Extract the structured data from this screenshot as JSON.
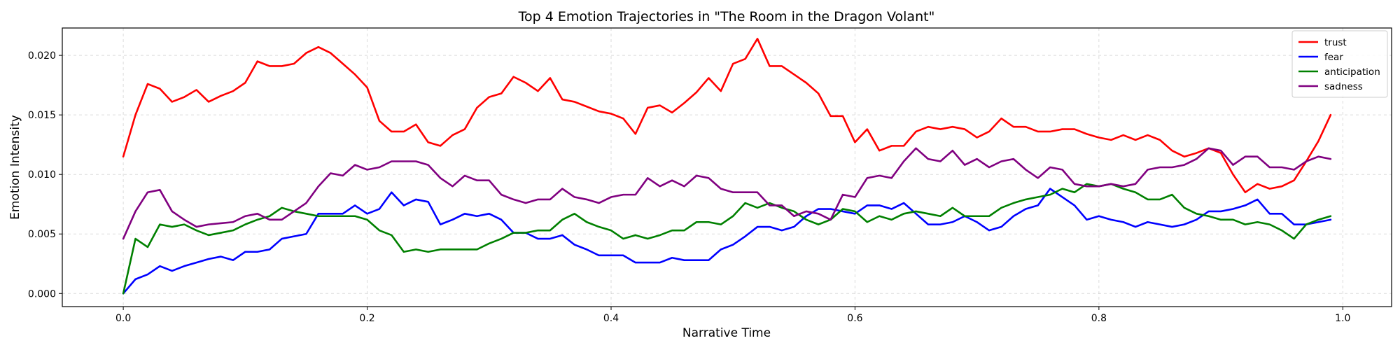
{
  "chart_data": {
    "type": "line",
    "title": "Top 4 Emotion Trajectories in \"The Room in the Dragon Volant\"",
    "xlabel": "Narrative Time",
    "ylabel": "Emotion Intensity",
    "xlim": [
      -0.05,
      1.04
    ],
    "ylim": [
      -0.0011,
      0.0223
    ],
    "xticks": [
      {
        "value": 0.0,
        "label": "0.0"
      },
      {
        "value": 0.2,
        "label": "0.2"
      },
      {
        "value": 0.4,
        "label": "0.4"
      },
      {
        "value": 0.6,
        "label": "0.6"
      },
      {
        "value": 0.8,
        "label": "0.8"
      },
      {
        "value": 1.0,
        "label": "1.0"
      }
    ],
    "yticks": [
      {
        "value": 0.0,
        "label": "0.000"
      },
      {
        "value": 0.005,
        "label": "0.005"
      },
      {
        "value": 0.01,
        "label": "0.010"
      },
      {
        "value": 0.015,
        "label": "0.015"
      },
      {
        "value": 0.02,
        "label": "0.020"
      }
    ],
    "grid": true,
    "legend_position": "top-right",
    "x_start": 0.0,
    "x_step": 0.01,
    "series": [
      {
        "name": "trust",
        "color": "#ff0000",
        "values": [
          0.0115,
          0.015,
          0.0176,
          0.0172,
          0.0161,
          0.0165,
          0.0171,
          0.0161,
          0.0166,
          0.017,
          0.0177,
          0.0195,
          0.0191,
          0.0191,
          0.0193,
          0.0202,
          0.0207,
          0.0202,
          0.0193,
          0.0184,
          0.0173,
          0.0145,
          0.0136,
          0.0136,
          0.0142,
          0.0127,
          0.0124,
          0.0133,
          0.0138,
          0.0156,
          0.0165,
          0.0168,
          0.0182,
          0.0177,
          0.017,
          0.0181,
          0.0163,
          0.0161,
          0.0157,
          0.0153,
          0.0151,
          0.0147,
          0.0134,
          0.0156,
          0.0158,
          0.0152,
          0.016,
          0.0169,
          0.0181,
          0.017,
          0.0193,
          0.0197,
          0.0214,
          0.0191,
          0.0191,
          0.0184,
          0.0177,
          0.0168,
          0.0149,
          0.0149,
          0.0127,
          0.0138,
          0.012,
          0.0124,
          0.0124,
          0.0136,
          0.014,
          0.0138,
          0.014,
          0.0138,
          0.0131,
          0.0136,
          0.0147,
          0.014,
          0.014,
          0.0136,
          0.0136,
          0.0138,
          0.0138,
          0.0134,
          0.0131,
          0.0129,
          0.0133,
          0.0129,
          0.0133,
          0.0129,
          0.012,
          0.0115,
          0.0118,
          0.0122,
          0.0118,
          0.01,
          0.0085,
          0.0092,
          0.0088,
          0.009,
          0.0095,
          0.0111,
          0.0128,
          0.015
        ]
      },
      {
        "name": "fear",
        "color": "#0000ff",
        "values": [
          0.0,
          0.0012,
          0.0016,
          0.0023,
          0.0019,
          0.0023,
          0.0026,
          0.0029,
          0.0031,
          0.0028,
          0.0035,
          0.0035,
          0.0037,
          0.0046,
          0.0048,
          0.005,
          0.0067,
          0.0067,
          0.0067,
          0.0074,
          0.0067,
          0.0071,
          0.0085,
          0.0074,
          0.0079,
          0.0077,
          0.0058,
          0.0062,
          0.0067,
          0.0065,
          0.0067,
          0.0062,
          0.0051,
          0.0051,
          0.0046,
          0.0046,
          0.0049,
          0.0041,
          0.0037,
          0.0032,
          0.0032,
          0.0032,
          0.0026,
          0.0026,
          0.0026,
          0.003,
          0.0028,
          0.0028,
          0.0028,
          0.0037,
          0.0041,
          0.0048,
          0.0056,
          0.0056,
          0.0053,
          0.0056,
          0.0065,
          0.0071,
          0.0071,
          0.0069,
          0.0067,
          0.0074,
          0.0074,
          0.0071,
          0.0076,
          0.0067,
          0.0058,
          0.0058,
          0.006,
          0.0065,
          0.006,
          0.0053,
          0.0056,
          0.0065,
          0.0071,
          0.0074,
          0.0088,
          0.0081,
          0.0074,
          0.0062,
          0.0065,
          0.0062,
          0.006,
          0.0056,
          0.006,
          0.0058,
          0.0056,
          0.0058,
          0.0062,
          0.0069,
          0.0069,
          0.0071,
          0.0074,
          0.0079,
          0.0067,
          0.0067,
          0.0058,
          0.0058,
          0.006,
          0.0062
        ]
      },
      {
        "name": "anticipation",
        "color": "#008000",
        "values": [
          0.0,
          0.0046,
          0.0039,
          0.0058,
          0.0056,
          0.0058,
          0.0053,
          0.0049,
          0.0051,
          0.0053,
          0.0058,
          0.0062,
          0.0065,
          0.0072,
          0.0069,
          0.0067,
          0.0065,
          0.0065,
          0.0065,
          0.0065,
          0.0062,
          0.0053,
          0.0049,
          0.0035,
          0.0037,
          0.0035,
          0.0037,
          0.0037,
          0.0037,
          0.0037,
          0.0042,
          0.0046,
          0.0051,
          0.0051,
          0.0053,
          0.0053,
          0.0062,
          0.0067,
          0.006,
          0.0056,
          0.0053,
          0.0046,
          0.0049,
          0.0046,
          0.0049,
          0.0053,
          0.0053,
          0.006,
          0.006,
          0.0058,
          0.0065,
          0.0076,
          0.0072,
          0.0076,
          0.0072,
          0.0069,
          0.0062,
          0.0058,
          0.0062,
          0.0071,
          0.0069,
          0.006,
          0.0065,
          0.0062,
          0.0067,
          0.0069,
          0.0067,
          0.0065,
          0.0072,
          0.0065,
          0.0065,
          0.0065,
          0.0072,
          0.0076,
          0.0079,
          0.0081,
          0.0083,
          0.0088,
          0.0085,
          0.0092,
          0.009,
          0.0092,
          0.0088,
          0.0085,
          0.0079,
          0.0079,
          0.0083,
          0.0072,
          0.0067,
          0.0065,
          0.0062,
          0.0062,
          0.0058,
          0.006,
          0.0058,
          0.0053,
          0.0046,
          0.0058,
          0.0062,
          0.0065
        ]
      },
      {
        "name": "sadness",
        "color": "#800080",
        "values": [
          0.0046,
          0.0069,
          0.0085,
          0.0087,
          0.0069,
          0.0062,
          0.0056,
          0.0058,
          0.0059,
          0.006,
          0.0065,
          0.0067,
          0.0062,
          0.0062,
          0.0069,
          0.0076,
          0.009,
          0.0101,
          0.0099,
          0.0108,
          0.0104,
          0.0106,
          0.0111,
          0.0111,
          0.0111,
          0.0108,
          0.0097,
          0.009,
          0.0099,
          0.0095,
          0.0095,
          0.0083,
          0.0079,
          0.0076,
          0.0079,
          0.0079,
          0.0088,
          0.0081,
          0.0079,
          0.0076,
          0.0081,
          0.0083,
          0.0083,
          0.0097,
          0.009,
          0.0095,
          0.009,
          0.0099,
          0.0097,
          0.0088,
          0.0085,
          0.0085,
          0.0085,
          0.0074,
          0.0074,
          0.0065,
          0.0069,
          0.0067,
          0.0062,
          0.0083,
          0.0081,
          0.0097,
          0.0099,
          0.0097,
          0.0111,
          0.0122,
          0.0113,
          0.0111,
          0.012,
          0.0108,
          0.0113,
          0.0106,
          0.0111,
          0.0113,
          0.0104,
          0.0097,
          0.0106,
          0.0104,
          0.0092,
          0.009,
          0.009,
          0.0092,
          0.009,
          0.0092,
          0.0104,
          0.0106,
          0.0106,
          0.0108,
          0.0113,
          0.0122,
          0.012,
          0.0108,
          0.0115,
          0.0115,
          0.0106,
          0.0106,
          0.0104,
          0.0111,
          0.0115,
          0.0113
        ]
      }
    ]
  }
}
